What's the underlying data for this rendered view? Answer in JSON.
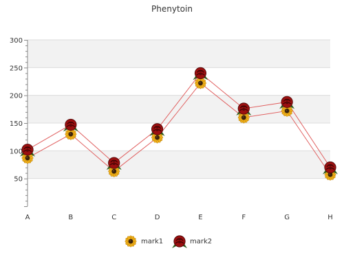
{
  "chart_data": {
    "type": "line",
    "title": "Phenytoin",
    "categories": [
      "A",
      "B",
      "C",
      "D",
      "E",
      "F",
      "G",
      "H"
    ],
    "series": [
      {
        "name": "mark1",
        "values": [
          87,
          130,
          63,
          124,
          222,
          160,
          172,
          57
        ],
        "color": "#e06060",
        "marker": "sunflower-icon"
      },
      {
        "name": "mark2",
        "values": [
          102,
          147,
          78,
          139,
          240,
          176,
          188,
          70
        ],
        "color": "#e06060",
        "marker": "red-rose-icon"
      }
    ],
    "ylim": [
      0,
      300
    ],
    "yticks": [
      50,
      100,
      150,
      200,
      250,
      300
    ],
    "grid": true,
    "legend": "bottom-center",
    "colors": {
      "band": "#f2f2f2",
      "grid": "#dcdcdc",
      "axis": "#888888",
      "sunflower": "#f2b21b",
      "rose": "#9b1010"
    }
  }
}
